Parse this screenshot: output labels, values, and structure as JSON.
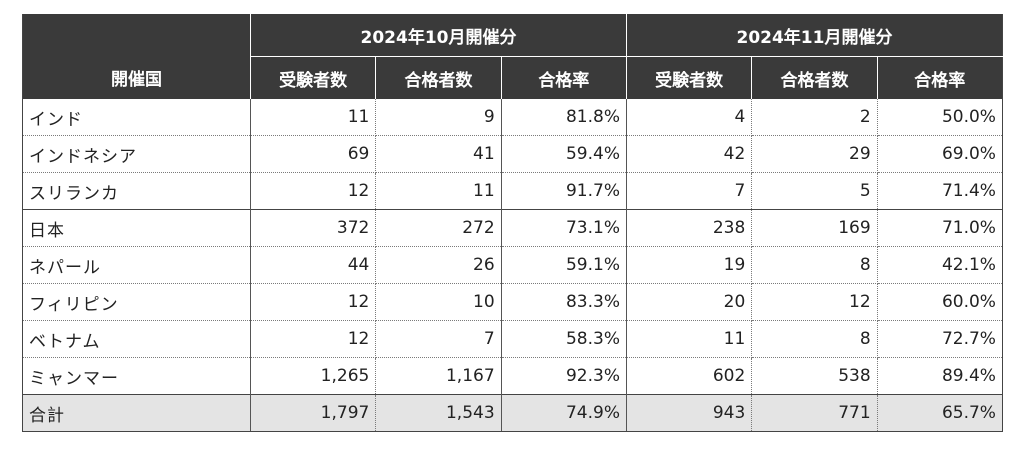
{
  "table": {
    "header": {
      "country_label": "開催国",
      "group1": "2024年10月開催分",
      "group2": "2024年11月開催分",
      "col_examinees": "受験者数",
      "col_passed": "合格者数",
      "col_rate": "合格率"
    },
    "rows": [
      {
        "country": "インド",
        "oct_examinees": "11",
        "oct_passed": "9",
        "oct_rate": "81.8%",
        "nov_examinees": "4",
        "nov_passed": "2",
        "nov_rate": "50.0%"
      },
      {
        "country": "インドネシア",
        "oct_examinees": "69",
        "oct_passed": "41",
        "oct_rate": "59.4%",
        "nov_examinees": "42",
        "nov_passed": "29",
        "nov_rate": "69.0%"
      },
      {
        "country": "スリランカ",
        "oct_examinees": "12",
        "oct_passed": "11",
        "oct_rate": "91.7%",
        "nov_examinees": "7",
        "nov_passed": "5",
        "nov_rate": "71.4%"
      },
      {
        "country": "日本",
        "oct_examinees": "372",
        "oct_passed": "272",
        "oct_rate": "73.1%",
        "nov_examinees": "238",
        "nov_passed": "169",
        "nov_rate": "71.0%"
      },
      {
        "country": "ネパール",
        "oct_examinees": "44",
        "oct_passed": "26",
        "oct_rate": "59.1%",
        "nov_examinees": "19",
        "nov_passed": "8",
        "nov_rate": "42.1%"
      },
      {
        "country": "フィリピン",
        "oct_examinees": "12",
        "oct_passed": "10",
        "oct_rate": "83.3%",
        "nov_examinees": "20",
        "nov_passed": "12",
        "nov_rate": "60.0%"
      },
      {
        "country": "ベトナム",
        "oct_examinees": "12",
        "oct_passed": "7",
        "oct_rate": "58.3%",
        "nov_examinees": "11",
        "nov_passed": "8",
        "nov_rate": "72.7%"
      },
      {
        "country": "ミャンマー",
        "oct_examinees": "1,265",
        "oct_passed": "1,167",
        "oct_rate": "92.3%",
        "nov_examinees": "602",
        "nov_passed": "538",
        "nov_rate": "89.4%"
      }
    ],
    "total": {
      "country": "合計",
      "oct_examinees": "1,797",
      "oct_passed": "1,543",
      "oct_rate": "74.9%",
      "nov_examinees": "943",
      "nov_passed": "771",
      "nov_rate": "65.7%"
    }
  }
}
